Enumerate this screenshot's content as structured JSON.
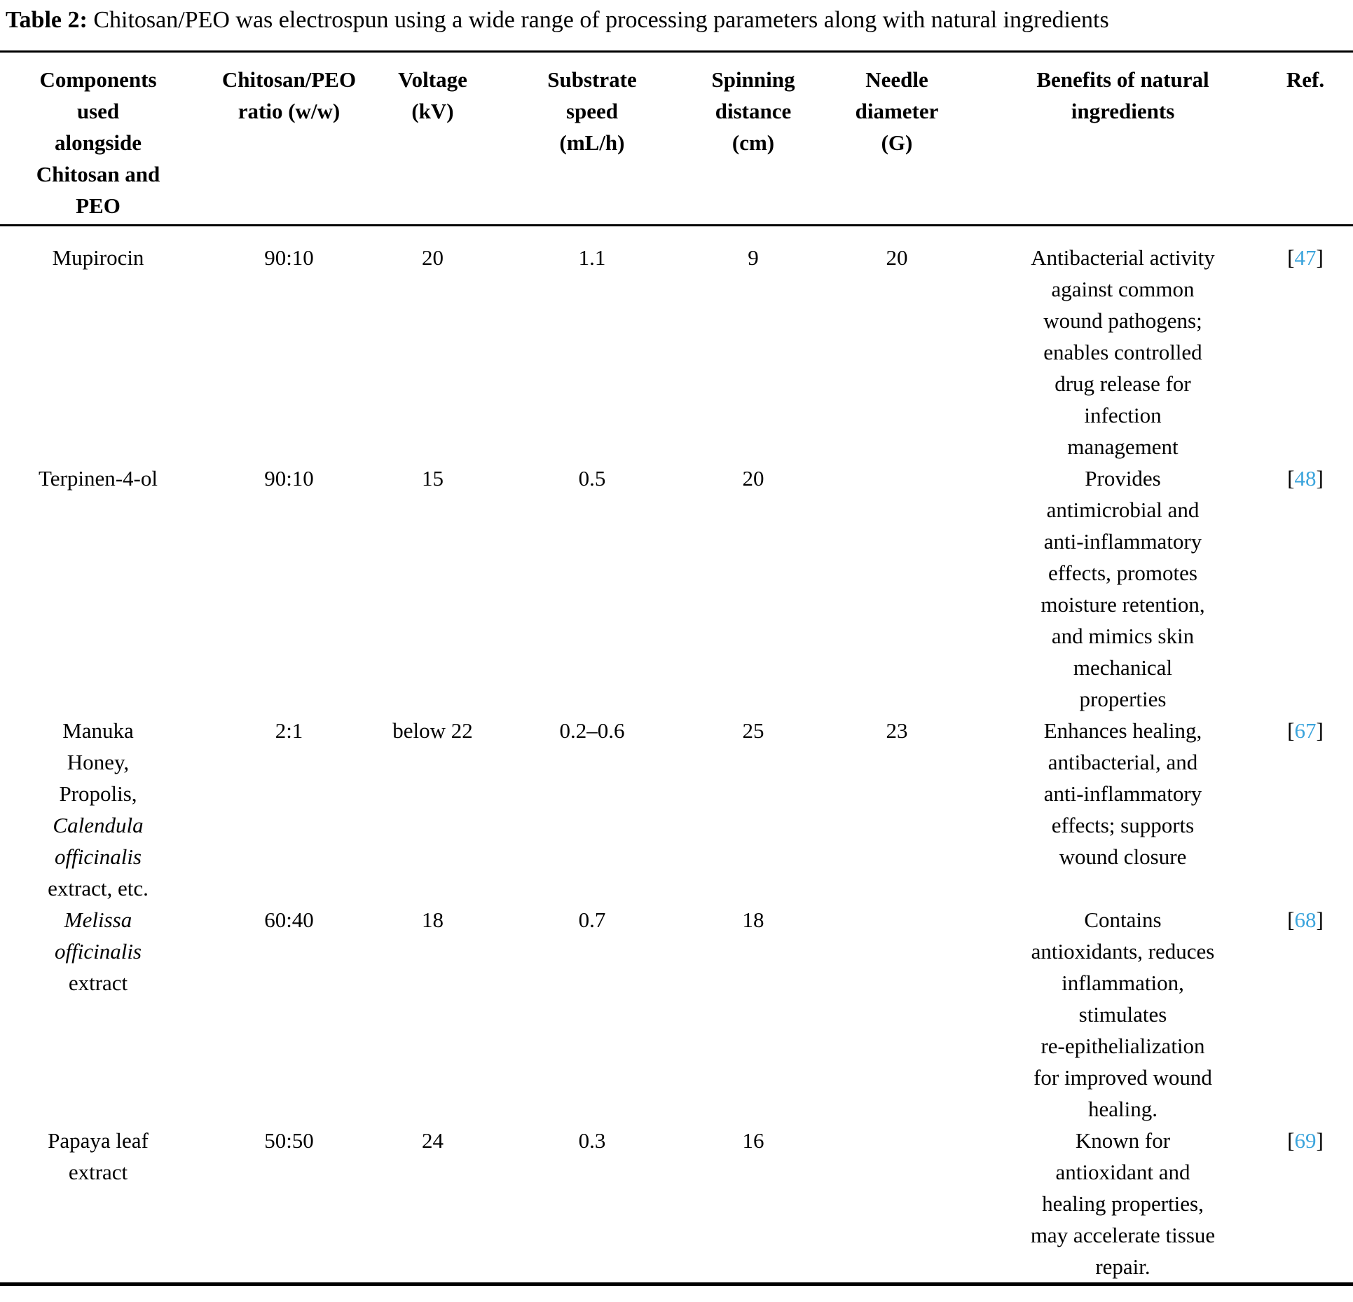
{
  "accent_color": "#3ba4dc",
  "caption": {
    "label": "Table 2:",
    "text": " Chitosan/PEO was electrospun using a wide range of processing parameters along with natural ingredients"
  },
  "table": {
    "columns": [
      {
        "key": "component",
        "lines": [
          "Components",
          "used",
          "alongside",
          "Chitosan and",
          "PEO"
        ]
      },
      {
        "key": "ratio",
        "lines": [
          "Chitosan/PEO",
          "ratio (w/w)"
        ]
      },
      {
        "key": "voltage",
        "lines": [
          "Voltage",
          "(kV)"
        ]
      },
      {
        "key": "substrate-speed",
        "lines": [
          "Substrate",
          "speed",
          "(mL/h)"
        ]
      },
      {
        "key": "spinning-distance",
        "lines": [
          "Spinning",
          "distance",
          "(cm)"
        ]
      },
      {
        "key": "needle-diameter",
        "lines": [
          "Needle",
          "diameter",
          "(G)"
        ]
      },
      {
        "key": "benefits",
        "lines": [
          "Benefits of natural",
          "ingredients"
        ]
      },
      {
        "key": "ref",
        "lines": [
          "Ref."
        ]
      }
    ],
    "rows": [
      {
        "component": [
          "Mupirocin"
        ],
        "ratio": "90:10",
        "voltage": "20",
        "substrate_speed": "1.1",
        "spinning_distance": "9",
        "needle_diameter": "20",
        "benefits": [
          "Antibacterial activity",
          "against common",
          "wound pathogens;",
          "enables controlled",
          "drug release for",
          "infection",
          "management"
        ],
        "ref": "47"
      },
      {
        "component": [
          "Terpinen-4-ol"
        ],
        "ratio": "90:10",
        "voltage": "15",
        "substrate_speed": "0.5",
        "spinning_distance": "20",
        "needle_diameter": "",
        "benefits": [
          "Provides",
          "antimicrobial and",
          "anti-inflammatory",
          "effects, promotes",
          "moisture retention,",
          "and mimics skin",
          "mechanical",
          "properties"
        ],
        "ref": "48"
      },
      {
        "component": [
          "Manuka",
          "Honey,",
          "Propolis,",
          {
            "text": "Calendula",
            "italic": true
          },
          {
            "text": "officinalis",
            "italic": true
          },
          "extract, etc."
        ],
        "ratio": "2:1",
        "voltage": "below 22",
        "substrate_speed": "0.2–0.6",
        "spinning_distance": "25",
        "needle_diameter": "23",
        "benefits": [
          "Enhances healing,",
          "antibacterial, and",
          "anti-inflammatory",
          "effects; supports",
          "wound closure"
        ],
        "ref": "67"
      },
      {
        "component": [
          {
            "text": "Melissa",
            "italic": true
          },
          {
            "text": "officinalis",
            "italic": true
          },
          "extract"
        ],
        "ratio": "60:40",
        "voltage": "18",
        "substrate_speed": "0.7",
        "spinning_distance": "18",
        "needle_diameter": "",
        "benefits": [
          "Contains",
          "antioxidants, reduces",
          "inflammation,",
          "stimulates",
          "re-epithelialization",
          "for improved wound",
          "healing."
        ],
        "ref": "68"
      },
      {
        "component": [
          "Papaya leaf",
          "extract"
        ],
        "ratio": "50:50",
        "voltage": "24",
        "substrate_speed": "0.3",
        "spinning_distance": "16",
        "needle_diameter": "",
        "benefits": [
          "Known for",
          "antioxidant and",
          "healing properties,",
          "may accelerate tissue",
          "repair."
        ],
        "ref": "69"
      }
    ]
  }
}
